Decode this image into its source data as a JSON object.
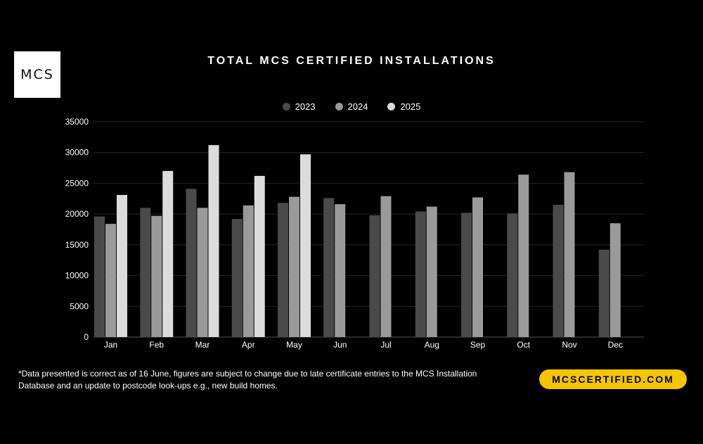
{
  "brand": {
    "logo_text": "MCS"
  },
  "chart_data": {
    "type": "bar",
    "title": "TOTAL MCS CERTIFIED INSTALLATIONS",
    "categories": [
      "Jan",
      "Feb",
      "Mar",
      "Apr",
      "May",
      "Jun",
      "Jul",
      "Aug",
      "Sep",
      "Oct",
      "Nov",
      "Dec"
    ],
    "series": [
      {
        "name": "2023",
        "color": "#4a4a4a",
        "values": [
          19600,
          21000,
          24100,
          19200,
          21800,
          22600,
          19800,
          20400,
          20200,
          20100,
          21500,
          14200
        ]
      },
      {
        "name": "2024",
        "color": "#9a9a9a",
        "values": [
          18400,
          19700,
          21000,
          21400,
          22800,
          21600,
          22900,
          21200,
          22700,
          26400,
          26800,
          18500
        ]
      },
      {
        "name": "2025",
        "color": "#dcdcdc",
        "values": [
          23100,
          27000,
          31200,
          26200,
          29700,
          null,
          null,
          null,
          null,
          null,
          null,
          null
        ]
      }
    ],
    "y_ticks": [
      "35000",
      "30000",
      "25000",
      "20000",
      "15000",
      "10000",
      "5000",
      "0"
    ],
    "ylim": [
      0,
      35000
    ],
    "grid": true,
    "legend_position": "top-center"
  },
  "footnote": "*Data presented is correct as of 16 June, figures are subject to change due to late certificate entries to the MCS Installation Database and an update to postcode look-ups e.g., new build homes.",
  "website": "MCSCERTIFIED.COM"
}
